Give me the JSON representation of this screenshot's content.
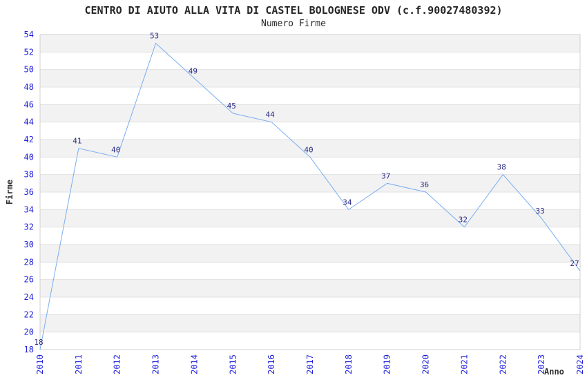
{
  "chart_data": {
    "type": "line",
    "title": "CENTRO DI AIUTO ALLA VITA DI CASTEL BOLOGNESE ODV (c.f.90027480392)",
    "subtitle": "Numero Firme",
    "xlabel": "Anno",
    "ylabel": "Firme",
    "categories": [
      "2010",
      "2011",
      "2012",
      "2013",
      "2014",
      "2015",
      "2016",
      "2017",
      "2018",
      "2019",
      "2020",
      "2021",
      "2022",
      "2023",
      "2024"
    ],
    "series": [
      {
        "name": "Numero Firme",
        "values": [
          18,
          41,
          40,
          53,
          49,
          45,
          44,
          40,
          34,
          37,
          36,
          32,
          38,
          33,
          27
        ]
      }
    ],
    "ylim": [
      18,
      54
    ],
    "ytick_step": 2,
    "grid": "horizontal",
    "banded_background": true,
    "legend_position": "none",
    "colors": {
      "line": "#79adf2",
      "tick_label": "#1f1fdd",
      "data_label": "#2b2b85",
      "band_fill": "#f2f2f2",
      "gridline": "#e1e1e1",
      "plot_border": "#d0d0d0",
      "heading_text": "#262626"
    }
  }
}
